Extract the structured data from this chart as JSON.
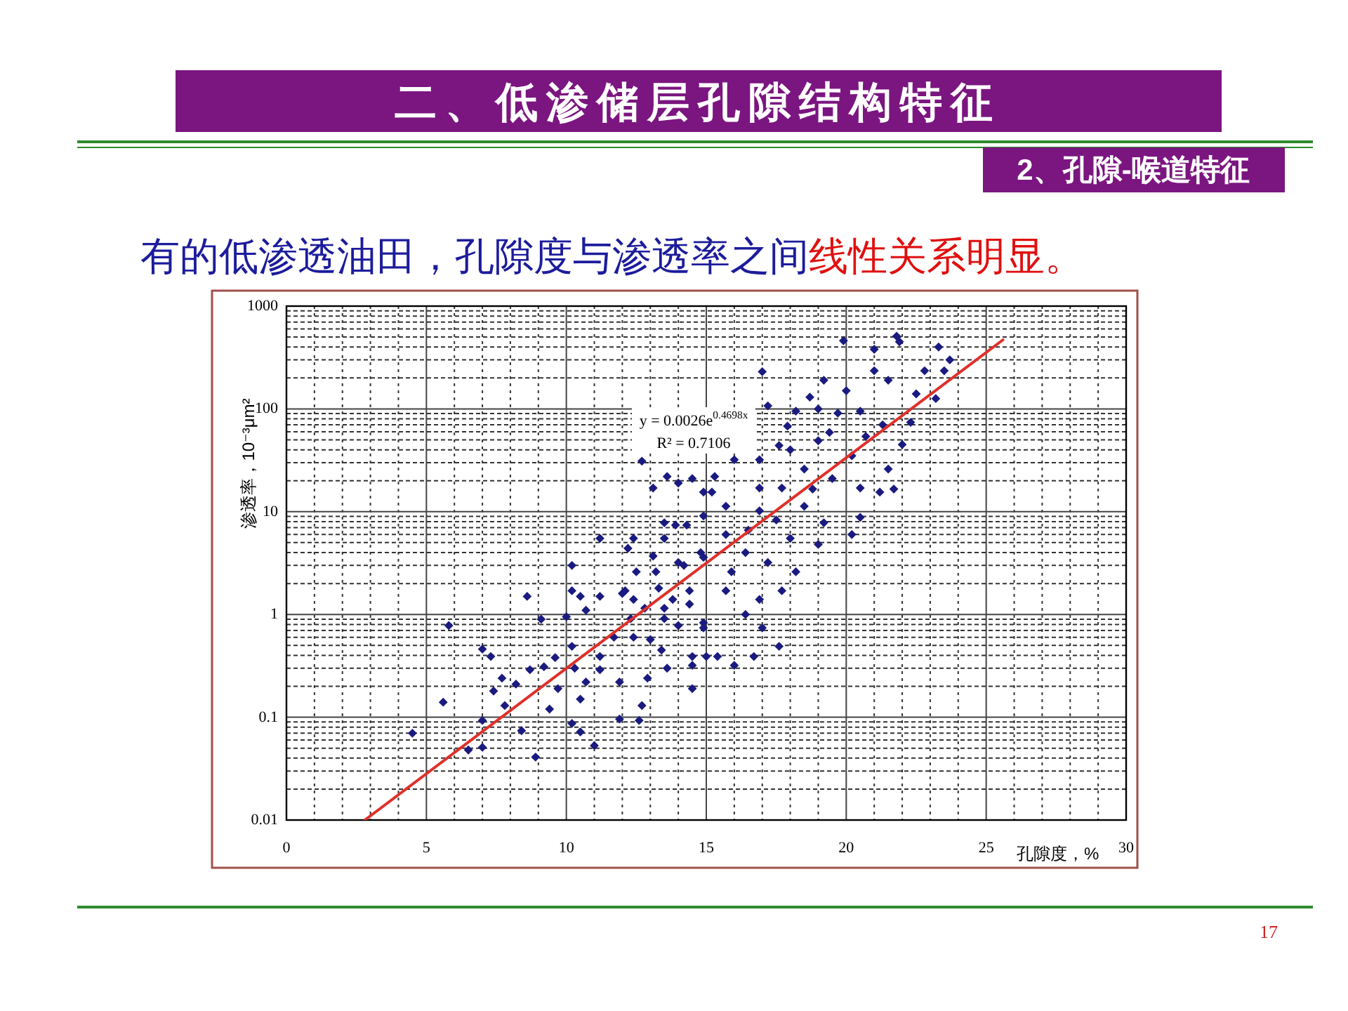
{
  "chart_data": {
    "type": "scatter",
    "title": "二、低渗储层孔隙结构特征",
    "subtitle": "2、孔隙-喉道特征",
    "xlabel": "孔隙度，%",
    "ylabel": "渗透率，10⁻³μm²",
    "annotations": [
      "y = 0.0026e$^{0.4698x}$",
      "R² = 0.7106",
      "有的低渗透油田，孔隙度与渗透率之间",
      "线性关系明显。",
      "17"
    ],
    "xlim": [
      0,
      30
    ],
    "xticks": [
      0,
      5,
      10,
      15,
      20,
      25,
      30
    ],
    "ylim": [
      0.01,
      1000
    ],
    "yticks": [
      0.01,
      0.1,
      1,
      10,
      100,
      1000
    ],
    "log": "y",
    "grid": true,
    "series": [
      {
        "color": "#1a1a80",
        "marker": "diamond",
        "x": [
          5.8,
          5.6,
          4.5,
          7.0,
          7.3,
          7.7,
          7.4,
          8.2,
          7.8,
          7.0,
          7.0,
          6.5,
          8.4,
          8.9,
          8.6,
          9.1,
          8.7,
          9.2,
          9.6,
          9.7,
          9.4,
          10.2,
          10.2,
          10.5,
          10.2,
          10.3,
          10.7,
          10.5,
          10.2,
          10.5,
          11.0,
          10.0,
          11.2,
          11.2,
          11.2,
          11.2,
          10.7,
          12.0,
          12.4,
          12.3,
          11.7,
          11.9,
          11.9,
          12.6,
          12.7,
          12.9,
          13.1,
          13.5,
          12.4,
          13.1,
          13.3,
          13.5,
          13.0,
          13.4,
          13.6,
          14.0,
          14.4,
          14.9,
          14.5,
          15.0,
          14.5,
          14.2,
          14.9,
          14.0,
          14.3,
          14.9,
          21.8,
          21.9,
          23.3,
          23.7,
          21.0,
          19.9,
          22.8,
          21.0,
          23.5,
          19.2,
          21.5,
          22.5,
          23.2,
          17.2,
          17.0,
          19.0,
          19.7,
          20.5,
          22.3,
          18.2,
          17.9,
          19.4,
          20.7,
          21.5,
          21.2,
          21.7,
          20.5,
          17.6,
          16.9,
          16.0,
          15.3,
          14.5,
          13.6,
          12.7,
          19.0,
          18.5,
          19.5,
          18.8,
          17.7,
          16.9,
          15.2,
          15.7,
          16.9,
          17.5,
          18.5,
          19.2,
          20.5,
          20.2,
          19.0,
          18.0,
          18.2,
          17.2,
          16.4,
          15.9,
          17.7,
          16.9,
          16.4,
          15.7,
          17.0,
          17.6,
          16.7,
          16.0,
          15.4,
          14.5,
          14.9,
          14.4,
          13.8,
          13.2,
          14.0,
          14.8,
          15.7,
          16.5,
          14.9,
          13.9,
          13.5,
          12.2,
          12.5,
          12.1,
          12.8,
          13.5,
          12.4,
          20.0,
          18.7,
          21.3,
          20.2,
          22.0,
          18.0
        ],
        "values": [
          0.78,
          0.14,
          0.07,
          0.46,
          0.39,
          0.24,
          0.18,
          0.21,
          0.13,
          0.093,
          0.051,
          0.048,
          0.074,
          0.041,
          1.5,
          0.9,
          0.29,
          0.31,
          0.38,
          0.19,
          0.12,
          3.0,
          1.7,
          1.5,
          0.49,
          0.3,
          0.22,
          0.15,
          0.087,
          0.072,
          0.053,
          0.95,
          0.39,
          0.29,
          5.5,
          1.5,
          1.1,
          1.6,
          1.4,
          0.91,
          0.6,
          0.22,
          0.096,
          0.093,
          0.13,
          0.24,
          17,
          7.8,
          5.5,
          3.7,
          1.8,
          1.15,
          0.57,
          0.45,
          0.3,
          0.78,
          1.26,
          0.83,
          0.39,
          0.39,
          0.19,
          3.0,
          3.6,
          19,
          7.4,
          15.5,
          510,
          450,
          400,
          300,
          380,
          460,
          235,
          235,
          235,
          190,
          190,
          140,
          126,
          107,
          230,
          100,
          91,
          95,
          74,
          95,
          68,
          59,
          54,
          26,
          15.5,
          16.6,
          17,
          44,
          32,
          32,
          22,
          21,
          22,
          31,
          49,
          26,
          21,
          16.6,
          17,
          17,
          15.5,
          11.3,
          10.2,
          8.3,
          11.3,
          7.8,
          8.8,
          6.0,
          4.8,
          5.5,
          2.6,
          3.2,
          4.0,
          2.6,
          1.7,
          1.4,
          1.0,
          1.7,
          0.74,
          0.49,
          0.39,
          0.32,
          0.39,
          0.32,
          0.74,
          1.7,
          1.4,
          2.6,
          3.2,
          4.0,
          6.0,
          6.6,
          9.1,
          7.4,
          5.5,
          4.4,
          2.6,
          1.7,
          1.15,
          0.91,
          0.6,
          150,
          130,
          70,
          35,
          45,
          40
        ]
      },
      {
        "type": "line",
        "color": "#e0302a",
        "line_style": "solid",
        "x": [
          2.8,
          25.6
        ],
        "values": [
          0.01,
          470
        ]
      }
    ]
  }
}
